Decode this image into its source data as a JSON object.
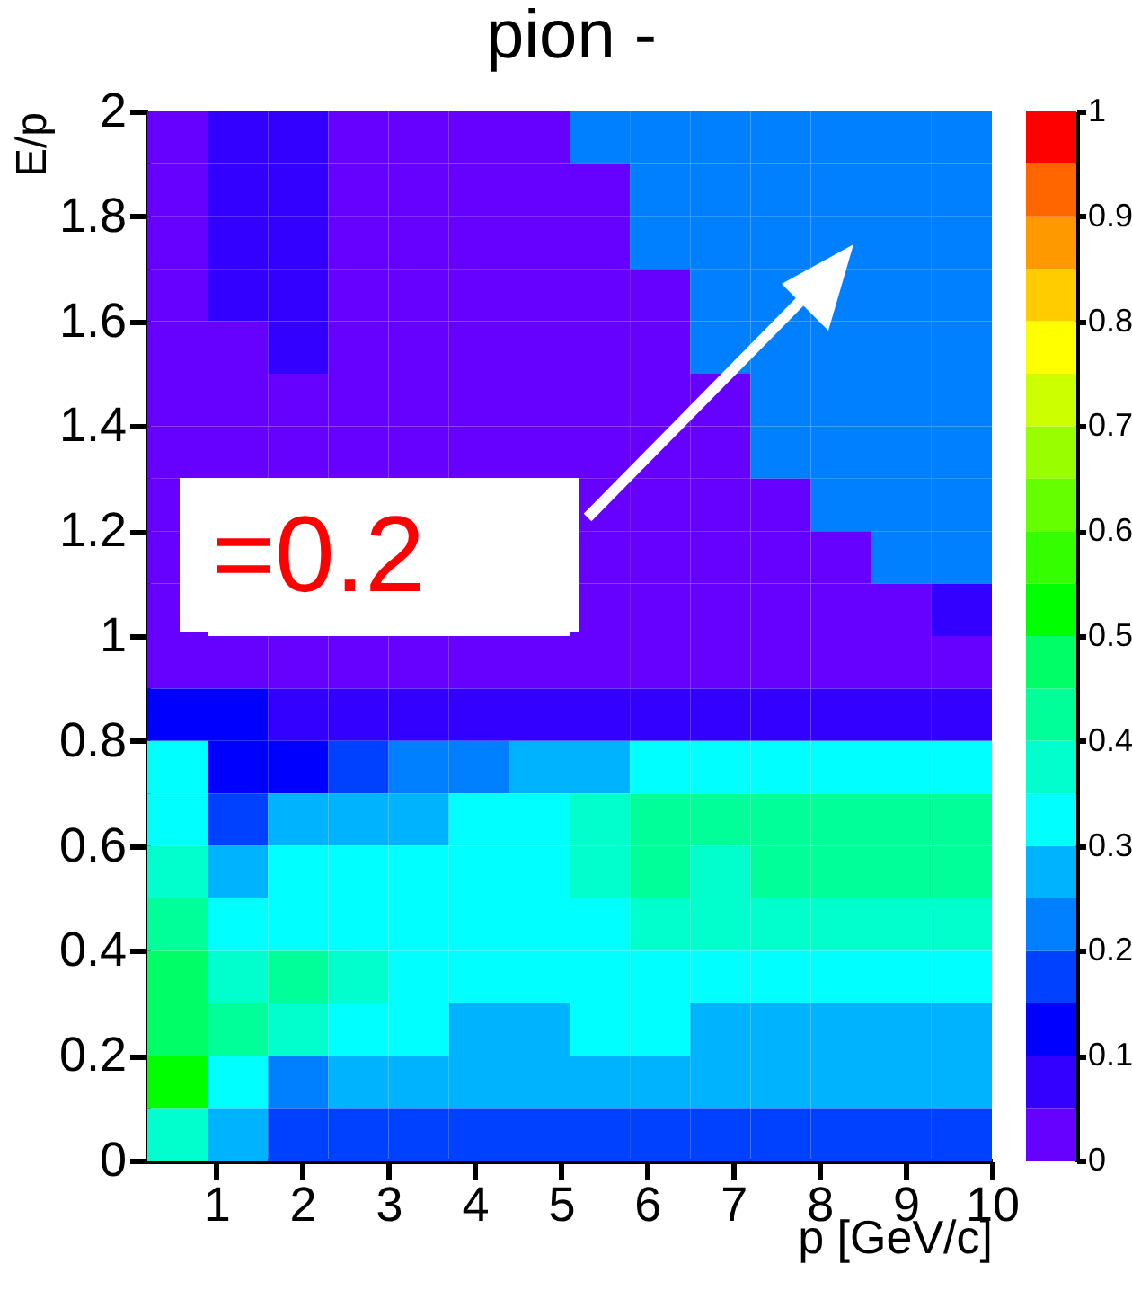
{
  "chart_data": {
    "type": "heatmap",
    "title": "pion -",
    "xlabel": "p [GeV/c]",
    "ylabel": "E/p",
    "annotations": [
      "=0.2"
    ],
    "x": [
      0.55,
      1.25,
      1.95,
      2.65,
      3.35,
      4.05,
      4.75,
      5.45,
      6.15,
      6.85,
      7.55,
      8.25,
      8.95,
      9.65
    ],
    "y": [
      1.95,
      1.85,
      1.75,
      1.65,
      1.55,
      1.45,
      1.35,
      1.25,
      1.15,
      1.05,
      0.95,
      0.85,
      0.75,
      0.65,
      0.55,
      0.45,
      0.35,
      0.25,
      0.15,
      0.05
    ],
    "cells": [
      [
        0.025,
        0.075,
        0.075,
        0.025,
        0.025,
        0.025,
        0.025,
        0.225,
        0.225,
        0.225,
        0.225,
        0.225,
        0.225,
        0.225
      ],
      [
        0.025,
        0.075,
        0.075,
        0.025,
        0.025,
        0.025,
        0.025,
        0.025,
        0.225,
        0.225,
        0.225,
        0.225,
        0.225,
        0.225
      ],
      [
        0.025,
        0.075,
        0.075,
        0.025,
        0.025,
        0.025,
        0.025,
        0.025,
        0.225,
        0.225,
        0.225,
        0.225,
        0.225,
        0.225
      ],
      [
        0.025,
        0.075,
        0.075,
        0.025,
        0.025,
        0.025,
        0.025,
        0.025,
        0.025,
        0.225,
        0.225,
        0.225,
        0.225,
        0.225
      ],
      [
        0.025,
        0.025,
        0.075,
        0.025,
        0.025,
        0.025,
        0.025,
        0.025,
        0.025,
        0.225,
        0.225,
        0.225,
        0.225,
        0.225
      ],
      [
        0.025,
        0.025,
        0.025,
        0.025,
        0.025,
        0.025,
        0.025,
        0.025,
        0.025,
        0.025,
        0.225,
        0.225,
        0.225,
        0.225
      ],
      [
        0.025,
        0.025,
        0.025,
        0.025,
        0.025,
        0.025,
        0.025,
        0.025,
        0.025,
        0.025,
        0.225,
        0.225,
        0.225,
        0.225
      ],
      [
        0.025,
        null,
        null,
        null,
        null,
        null,
        null,
        0.025,
        0.025,
        0.025,
        0.025,
        0.225,
        0.225,
        0.225
      ],
      [
        0.025,
        null,
        null,
        null,
        null,
        null,
        null,
        0.025,
        0.025,
        0.025,
        0.025,
        0.025,
        0.225,
        0.225
      ],
      [
        0.025,
        null,
        null,
        null,
        null,
        null,
        null,
        0.025,
        0.025,
        0.025,
        0.025,
        0.025,
        0.025,
        0.075
      ],
      [
        0.025,
        0.025,
        0.025,
        0.025,
        0.025,
        0.025,
        0.025,
        0.025,
        0.025,
        0.025,
        0.025,
        0.025,
        0.025,
        0.025
      ],
      [
        0.125,
        0.125,
        0.075,
        0.075,
        0.075,
        0.075,
        0.075,
        0.075,
        0.075,
        0.075,
        0.075,
        0.075,
        0.075,
        0.075
      ],
      [
        0.325,
        0.125,
        0.125,
        0.175,
        0.225,
        0.225,
        0.275,
        0.275,
        0.325,
        0.325,
        0.325,
        0.325,
        0.325,
        0.325
      ],
      [
        0.325,
        0.175,
        0.275,
        0.275,
        0.275,
        0.325,
        0.325,
        0.375,
        0.425,
        0.425,
        0.425,
        0.425,
        0.425,
        0.425
      ],
      [
        0.375,
        0.275,
        0.325,
        0.325,
        0.325,
        0.325,
        0.325,
        0.375,
        0.425,
        0.375,
        0.425,
        0.425,
        0.425,
        0.425
      ],
      [
        0.425,
        0.325,
        0.325,
        0.325,
        0.325,
        0.325,
        0.325,
        0.325,
        0.375,
        0.375,
        0.375,
        0.375,
        0.375,
        0.375
      ],
      [
        0.475,
        0.375,
        0.425,
        0.375,
        0.325,
        0.325,
        0.325,
        0.325,
        0.325,
        0.325,
        0.325,
        0.325,
        0.325,
        0.325
      ],
      [
        0.475,
        0.425,
        0.375,
        0.325,
        0.325,
        0.275,
        0.275,
        0.325,
        0.325,
        0.275,
        0.275,
        0.275,
        0.275,
        0.275
      ],
      [
        0.525,
        0.325,
        0.225,
        0.275,
        0.275,
        0.275,
        0.275,
        0.275,
        0.275,
        0.275,
        0.275,
        0.275,
        0.275,
        0.275
      ],
      [
        0.375,
        0.275,
        0.175,
        0.175,
        0.175,
        0.175,
        0.175,
        0.175,
        0.175,
        0.175,
        0.175,
        0.175,
        0.175,
        0.175
      ]
    ],
    "xlim": [
      0.2,
      10
    ],
    "xticks": [
      1,
      2,
      3,
      4,
      5,
      6,
      7,
      8,
      9,
      10
    ],
    "ylim": [
      0,
      2
    ],
    "yticks": [
      0,
      0.2,
      0.4,
      0.6,
      0.8,
      1,
      1.2,
      1.4,
      1.6,
      1.8,
      2
    ],
    "clim": [
      0,
      1
    ],
    "cticks": [
      0,
      0.1,
      0.2,
      0.3,
      0.4,
      0.5,
      0.6,
      0.7,
      0.8,
      0.9,
      1
    ]
  }
}
